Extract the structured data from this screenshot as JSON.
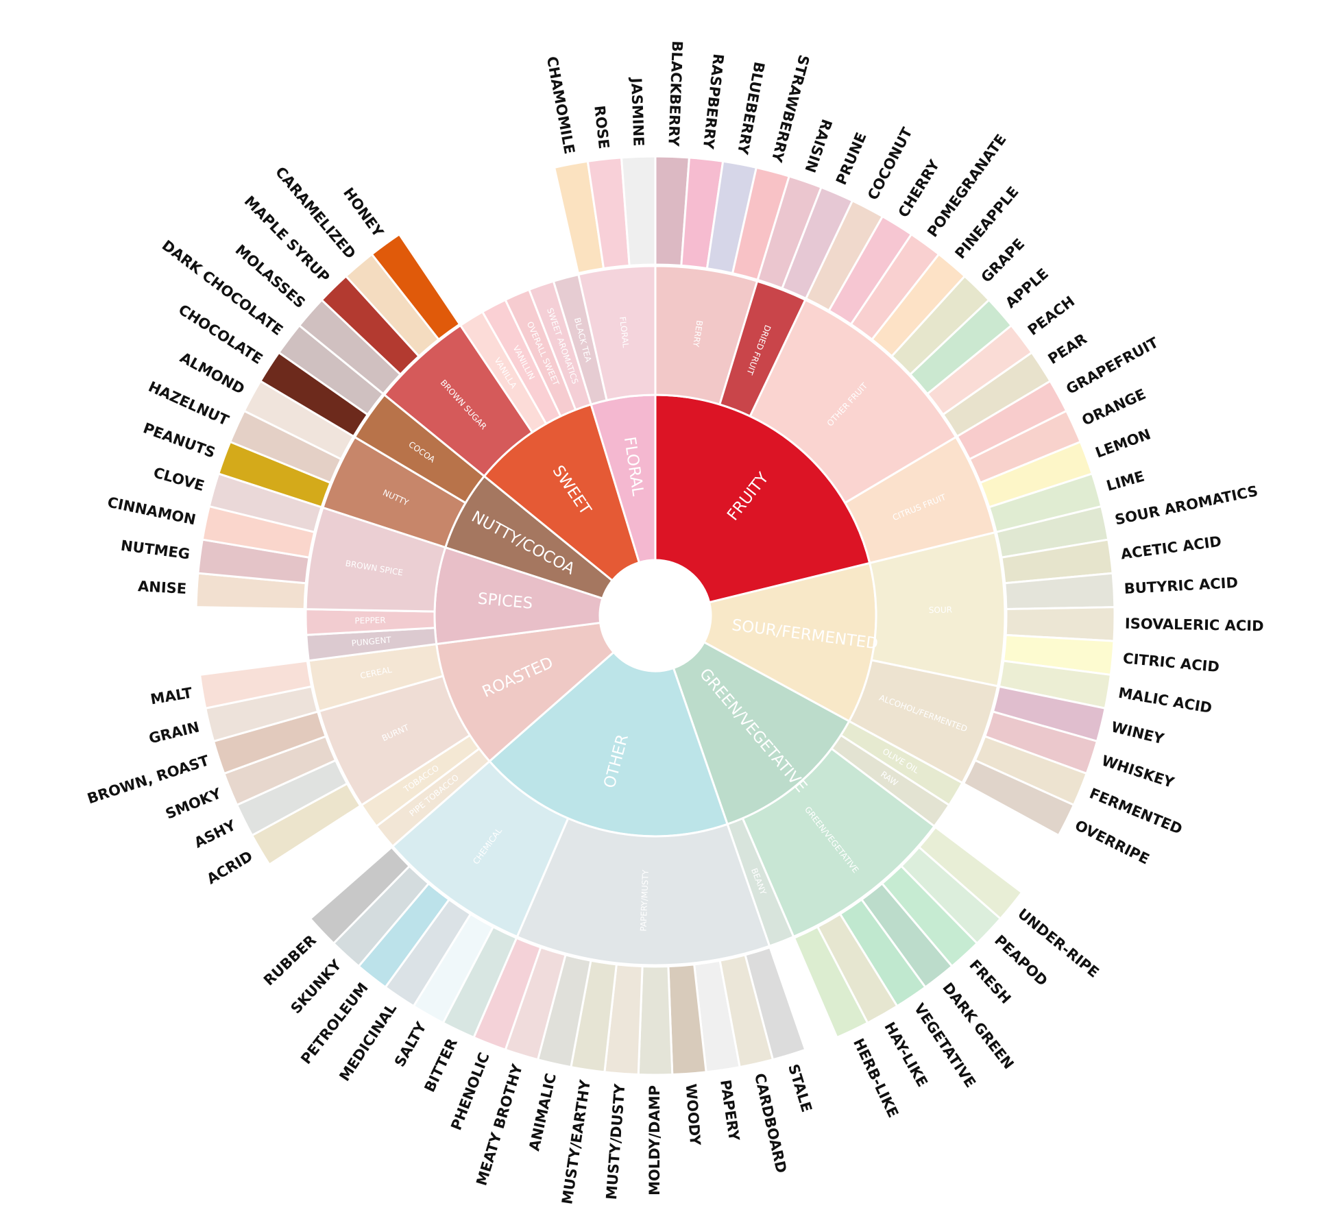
{
  "chart_data": {
    "type": "sunburst",
    "children": [
      {
        "name": "FRUITY",
        "color": "#dc1425",
        "children": [
          {
            "name": "BERRY",
            "color": "#f2c8c8",
            "children": [
              {
                "name": "BLACKBERRY",
                "color": "#dcb9c3"
              },
              {
                "name": "RASPBERRY",
                "color": "#f6bcd0"
              },
              {
                "name": "BLUEBERRY",
                "color": "#d6d6e8"
              },
              {
                "name": "STRAWBERRY",
                "color": "#f8c2c6"
              }
            ]
          },
          {
            "name": "DRIED FRUIT",
            "color": "#c9454a",
            "children": [
              {
                "name": "RAISIN",
                "color": "#ebc6cf"
              },
              {
                "name": "PRUNE",
                "color": "#e6c8d4"
              }
            ]
          },
          {
            "name": "OTHER FRUIT",
            "color": "#fad4d0",
            "children": [
              {
                "name": "COCONUT",
                "color": "#f0d9cc"
              },
              {
                "name": "CHERRY",
                "color": "#f6c6d2"
              },
              {
                "name": "POMEGRANATE",
                "color": "#f9d0d0"
              },
              {
                "name": "PINEAPPLE",
                "color": "#fde2c6"
              },
              {
                "name": "GRAPE",
                "color": "#e6e6cc"
              },
              {
                "name": "APPLE",
                "color": "#cbe8d0"
              },
              {
                "name": "PEACH",
                "color": "#fadcd6"
              },
              {
                "name": "PEAR",
                "color": "#e8e2cc"
              }
            ]
          },
          {
            "name": "CITRUS FRUIT",
            "color": "#fbe1cc",
            "children": [
              {
                "name": "GRAPEFRUIT",
                "color": "#f8cccc"
              },
              {
                "name": "ORANGE",
                "color": "#f8d2cc"
              },
              {
                "name": "LEMON",
                "color": "#fdf6c8"
              },
              {
                "name": "LIME",
                "color": "#e0ecd2"
              }
            ]
          }
        ]
      },
      {
        "name": "SOUR/FERMENTED",
        "color": "#f8e8c8",
        "children": [
          {
            "name": "SOUR",
            "color": "#f4eed4",
            "children": [
              {
                "name": "SOUR AROMATICS",
                "color": "#e0e8d2"
              },
              {
                "name": "ACETIC ACID",
                "color": "#e6e4cc"
              },
              {
                "name": "BUTYRIC ACID",
                "color": "#e4e4da"
              },
              {
                "name": "ISOVALERIC ACID",
                "color": "#ece6d4"
              },
              {
                "name": "CITRIC ACID",
                "color": "#fdfbd0"
              },
              {
                "name": "MALIC ACID",
                "color": "#eceed4"
              }
            ]
          },
          {
            "name": "ALCOHOL/FERMENTED",
            "color": "#ede3d0",
            "children": [
              {
                "name": "WINEY",
                "color": "#e0bece"
              },
              {
                "name": "WHISKEY",
                "color": "#ebc8cc"
              },
              {
                "name": "FERMENTED",
                "color": "#ede3d0"
              },
              {
                "name": "OVERRIPE",
                "color": "#e0d4ca"
              }
            ]
          }
        ]
      },
      {
        "name": "GREEN/VEGETATIVE",
        "color": "#bcdccb",
        "children": [
          {
            "name": "OLIVE OIL",
            "color": "#e6ead0"
          },
          {
            "name": "RAW",
            "color": "#e3e3d2"
          },
          {
            "name": "GREEN/VEGETATIVE",
            "color": "#c8e6d4",
            "children": [
              {
                "name": "UNDER-RIPE",
                "color": "#e8eed6"
              },
              {
                "name": "PEAPOD",
                "color": "#dceedc"
              },
              {
                "name": "FRESH",
                "color": "#c6ebd2"
              },
              {
                "name": "DARK GREEN",
                "color": "#bcdccb"
              },
              {
                "name": "VEGETATIVE",
                "color": "#c0e8cf"
              },
              {
                "name": "HAY-LIKE",
                "color": "#e6e6d0"
              },
              {
                "name": "HERB-LIKE",
                "color": "#dcedd0"
              }
            ]
          },
          {
            "name": "BEANY",
            "color": "#d8e4dc"
          }
        ]
      },
      {
        "name": "OTHER",
        "color": "#bce4e8",
        "children": [
          {
            "name": "PAPERY/MUSTY",
            "color": "#e1e6e8",
            "children": [
              {
                "name": "STALE",
                "color": "#dcdcdc"
              },
              {
                "name": "CARDBOARD",
                "color": "#ebe6d8"
              },
              {
                "name": "PAPERY",
                "color": "#f0f0f0"
              },
              {
                "name": "WOODY",
                "color": "#d8cbbb"
              },
              {
                "name": "MOLDY/DAMP",
                "color": "#e4e4d8"
              },
              {
                "name": "MUSTY/DUSTY",
                "color": "#ede6da"
              },
              {
                "name": "MUSTY/EARTHY",
                "color": "#e6e4d4"
              },
              {
                "name": "ANIMALIC",
                "color": "#e0e0da"
              },
              {
                "name": "MEATY BROTHY",
                "color": "#f0dcdc"
              },
              {
                "name": "PHENOLIC",
                "color": "#f4d2d8"
              }
            ]
          },
          {
            "name": "CHEMICAL",
            "color": "#d8ecf0",
            "children": [
              {
                "name": "BITTER",
                "color": "#d8e6e2"
              },
              {
                "name": "SALTY",
                "color": "#f0f8fa"
              },
              {
                "name": "MEDICINAL",
                "color": "#dbe2e6"
              },
              {
                "name": "PETROLEUM",
                "color": "#bce2ea"
              },
              {
                "name": "SKUNKY",
                "color": "#d4dcde"
              },
              {
                "name": "RUBBER",
                "color": "#c8c8c8"
              }
            ]
          }
        ]
      },
      {
        "name": "ROASTED",
        "color": "#efc9c5",
        "children": [
          {
            "name": "PIPE TOBACCO",
            "color": "#f2e6d6"
          },
          {
            "name": "TOBACCO",
            "color": "#f4e8d4"
          },
          {
            "name": "BURNT",
            "color": "#efddd5",
            "children": [
              {
                "name": "ACRID",
                "color": "#ece4cc"
              },
              {
                "name": "ASHY",
                "color": "#e0e2e0"
              },
              {
                "name": "SMOKY",
                "color": "#e7d7cd"
              },
              {
                "name": "BROWN, ROAST",
                "color": "#e2cabd"
              }
            ]
          },
          {
            "name": "CEREAL",
            "color": "#f4e6d4",
            "children": [
              {
                "name": "GRAIN",
                "color": "#ede2da"
              },
              {
                "name": "MALT",
                "color": "#f8e0d8"
              }
            ]
          }
        ]
      },
      {
        "name": "SPICES",
        "color": "#e8bfc8",
        "children": [
          {
            "name": "PUNGENT",
            "color": "#dccad0"
          },
          {
            "name": "PEPPER",
            "color": "#f2ccd0"
          },
          {
            "name": "BROWN SPICE",
            "color": "#ebcfd3",
            "children": [
              {
                "name": "ANISE",
                "color": "#f2e0d0"
              },
              {
                "name": "NUTMEG",
                "color": "#e4c4c8"
              },
              {
                "name": "CINNAMON",
                "color": "#fad6cc"
              },
              {
                "name": "CLOVE",
                "color": "#ead8d8"
              }
            ]
          }
        ]
      },
      {
        "name": "NUTTY/COCOA",
        "color": "#a57760",
        "children": [
          {
            "name": "NUTTY",
            "color": "#c7866a",
            "children": [
              {
                "name": "PEANUTS",
                "color": "#d4aa1a"
              },
              {
                "name": "HAZELNUT",
                "color": "#e4d0c6"
              },
              {
                "name": "ALMOND",
                "color": "#f0e4dc"
              }
            ]
          },
          {
            "name": "COCOA",
            "color": "#b8734a",
            "children": [
              {
                "name": "CHOCOLATE",
                "color": "#6d2a1c"
              },
              {
                "name": "DARK CHOCOLATE",
                "color": "#cfc0c0"
              }
            ]
          }
        ]
      },
      {
        "name": "SWEET",
        "color": "#e55a35",
        "children": [
          {
            "name": "BROWN SUGAR",
            "color": "#d55a5a",
            "children": [
              {
                "name": "MOLASSES",
                "color": "#d0c0c0"
              },
              {
                "name": "MAPLE SYRUP",
                "color": "#b33a30"
              },
              {
                "name": "CARAMELIZED",
                "color": "#f4dcc0"
              },
              {
                "name": "HONEY",
                "color": "#e05a0a"
              }
            ]
          },
          {
            "name": "VANILLA",
            "color": "#fcdcd8"
          },
          {
            "name": "VANILLIN",
            "color": "#fad0d4"
          },
          {
            "name": "OVERALL SWEET",
            "color": "#f6ccd0"
          },
          {
            "name": "SWEET AROMATICS",
            "color": "#f4cfd6"
          }
        ]
      },
      {
        "name": "FLORAL",
        "color": "#f4b8d0",
        "children": [
          {
            "name": "BLACK TEA",
            "color": "#e6ccd2"
          },
          {
            "name": "FLORAL",
            "color": "#f4d4dc",
            "children": [
              {
                "name": "CHAMOMILE",
                "color": "#fbe2c0"
              },
              {
                "name": "ROSE",
                "color": "#f8d0d8"
              },
              {
                "name": "JASMINE",
                "color": "#efefef"
              }
            ]
          }
        ]
      }
    ]
  }
}
